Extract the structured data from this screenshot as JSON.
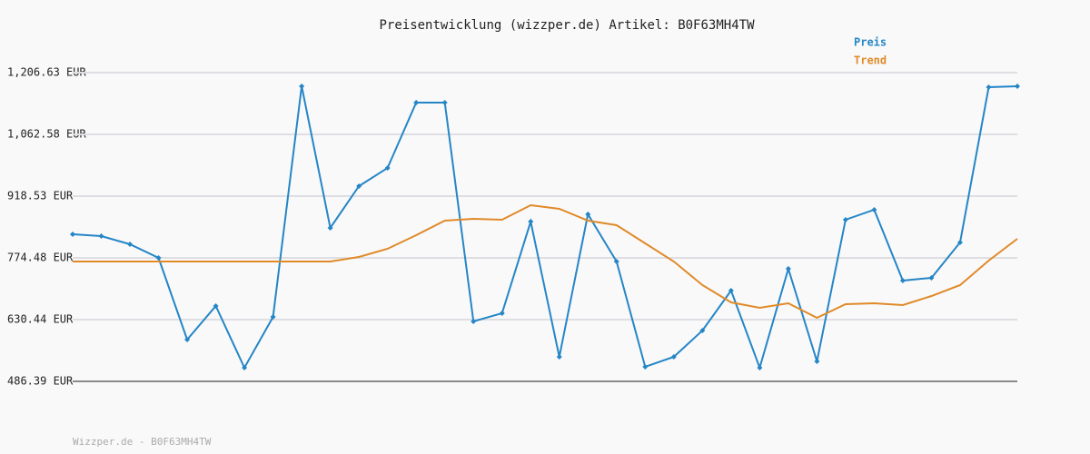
{
  "chart_data": {
    "type": "line",
    "title": "Preisentwicklung (wizzper.de) Artikel: B0F63MH4TW",
    "footer": "Wizzper.de - B0F63MH4TW",
    "ylim": [
      486.39,
      1206.63
    ],
    "yticks": [
      {
        "value": 486.39,
        "label": "486.39 EUR"
      },
      {
        "value": 630.44,
        "label": "630.44 EUR"
      },
      {
        "value": 774.48,
        "label": "774.48 EUR"
      },
      {
        "value": 918.53,
        "label": "918.53 EUR"
      },
      {
        "value": 1062.58,
        "label": "1,062.58 EUR"
      },
      {
        "value": 1206.63,
        "label": "1,206.63 EUR"
      }
    ],
    "grid": true,
    "series": [
      {
        "name": "Preis",
        "color": "#2586c6",
        "markers": true,
        "values": [
          829.6,
          825.3,
          806.3,
          774.5,
          583.8,
          662.2,
          518.2,
          636.8,
          1174.9,
          844.4,
          941.9,
          984.2,
          1136.8,
          1136.8,
          626.2,
          645.3,
          859.2,
          543.6,
          876.2,
          766.0,
          520.3,
          543.6,
          605.0,
          698.2,
          518.2,
          749.1,
          533.0,
          863.5,
          886.8,
          721.5,
          727.9,
          810.5,
          1172.8,
          1174.9
        ]
      },
      {
        "name": "Trend",
        "color": "#e08a28",
        "markers": false,
        "values": [
          766.0,
          766.0,
          766.0,
          766.0,
          766.0,
          766.0,
          766.0,
          766.0,
          766.0,
          766.0,
          776.6,
          795.7,
          827.5,
          861.4,
          865.6,
          863.5,
          897.4,
          888.9,
          861.4,
          850.8,
          808.4,
          766.0,
          711.0,
          670.7,
          658.0,
          668.6,
          634.7,
          666.5,
          668.6,
          664.3,
          685.5,
          711.0,
          768.1,
          819.0
        ]
      }
    ]
  }
}
